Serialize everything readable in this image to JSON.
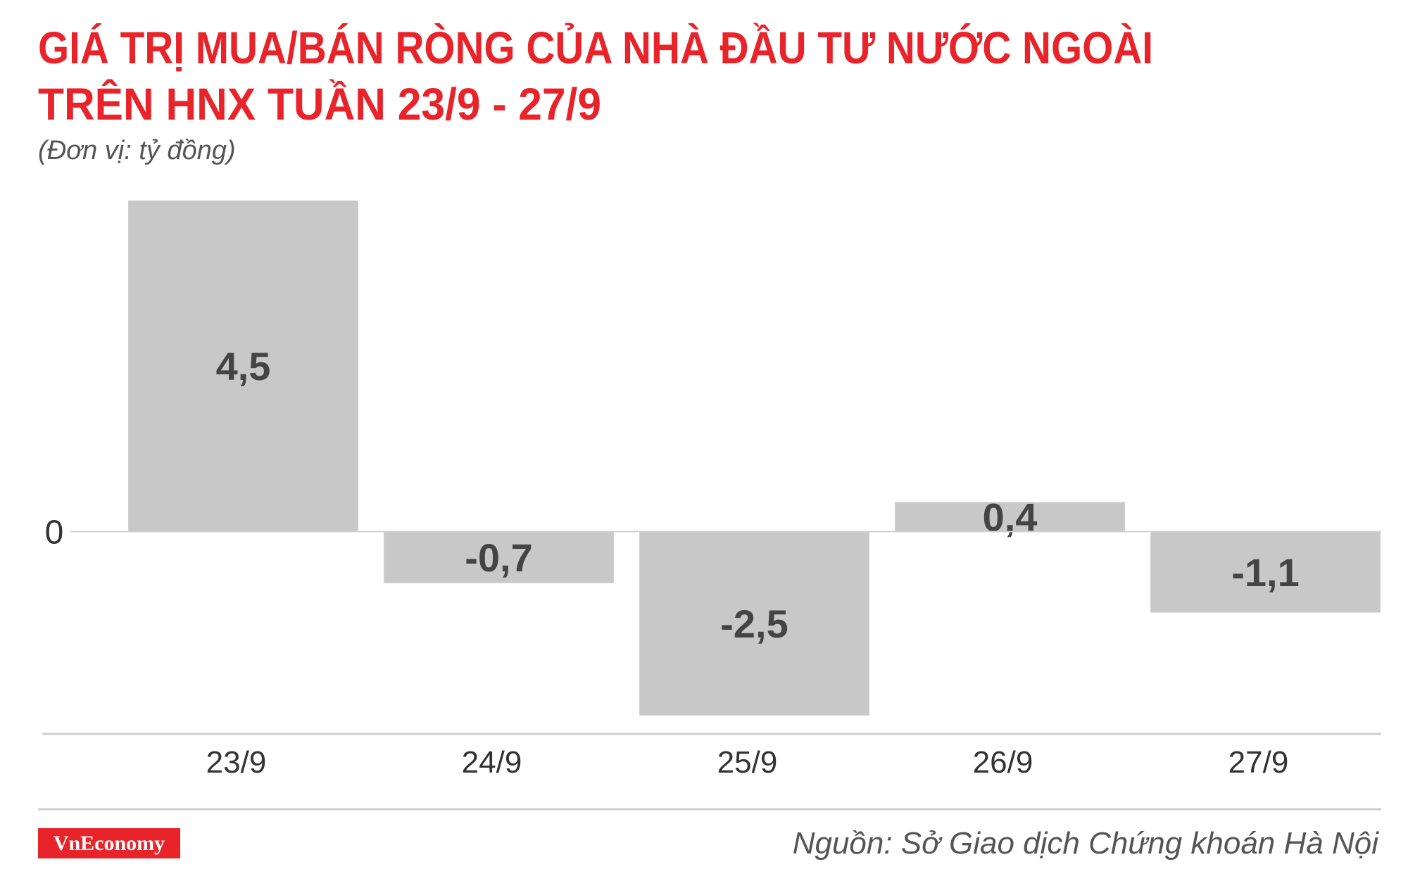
{
  "chart_data": {
    "type": "bar",
    "title": [
      "GIÁ TRỊ MUA/BÁN RÒNG CỦA NHÀ ĐẦU TƯ NƯỚC NGOÀI",
      "TRÊN HNX TUẦN 23/9 - 27/9"
    ],
    "subtitle": "(Đơn vị: tỷ đồng)",
    "categories": [
      "23/9",
      "24/9",
      "25/9",
      "26/9",
      "27/9"
    ],
    "values": [
      4.5,
      -0.7,
      -2.5,
      0.4,
      -1.1
    ],
    "value_labels": [
      "4,5",
      "-0,7",
      "-2,5",
      "0,4",
      "-1,1"
    ],
    "color": "#c9c8c8",
    "ylim": [
      -2.75,
      4.5
    ],
    "yticks": [
      0
    ],
    "grid": true,
    "source": "Nguồn: Sở Giao dịch Chứng khoán Hà Nội",
    "logo": "VnEconomy"
  }
}
